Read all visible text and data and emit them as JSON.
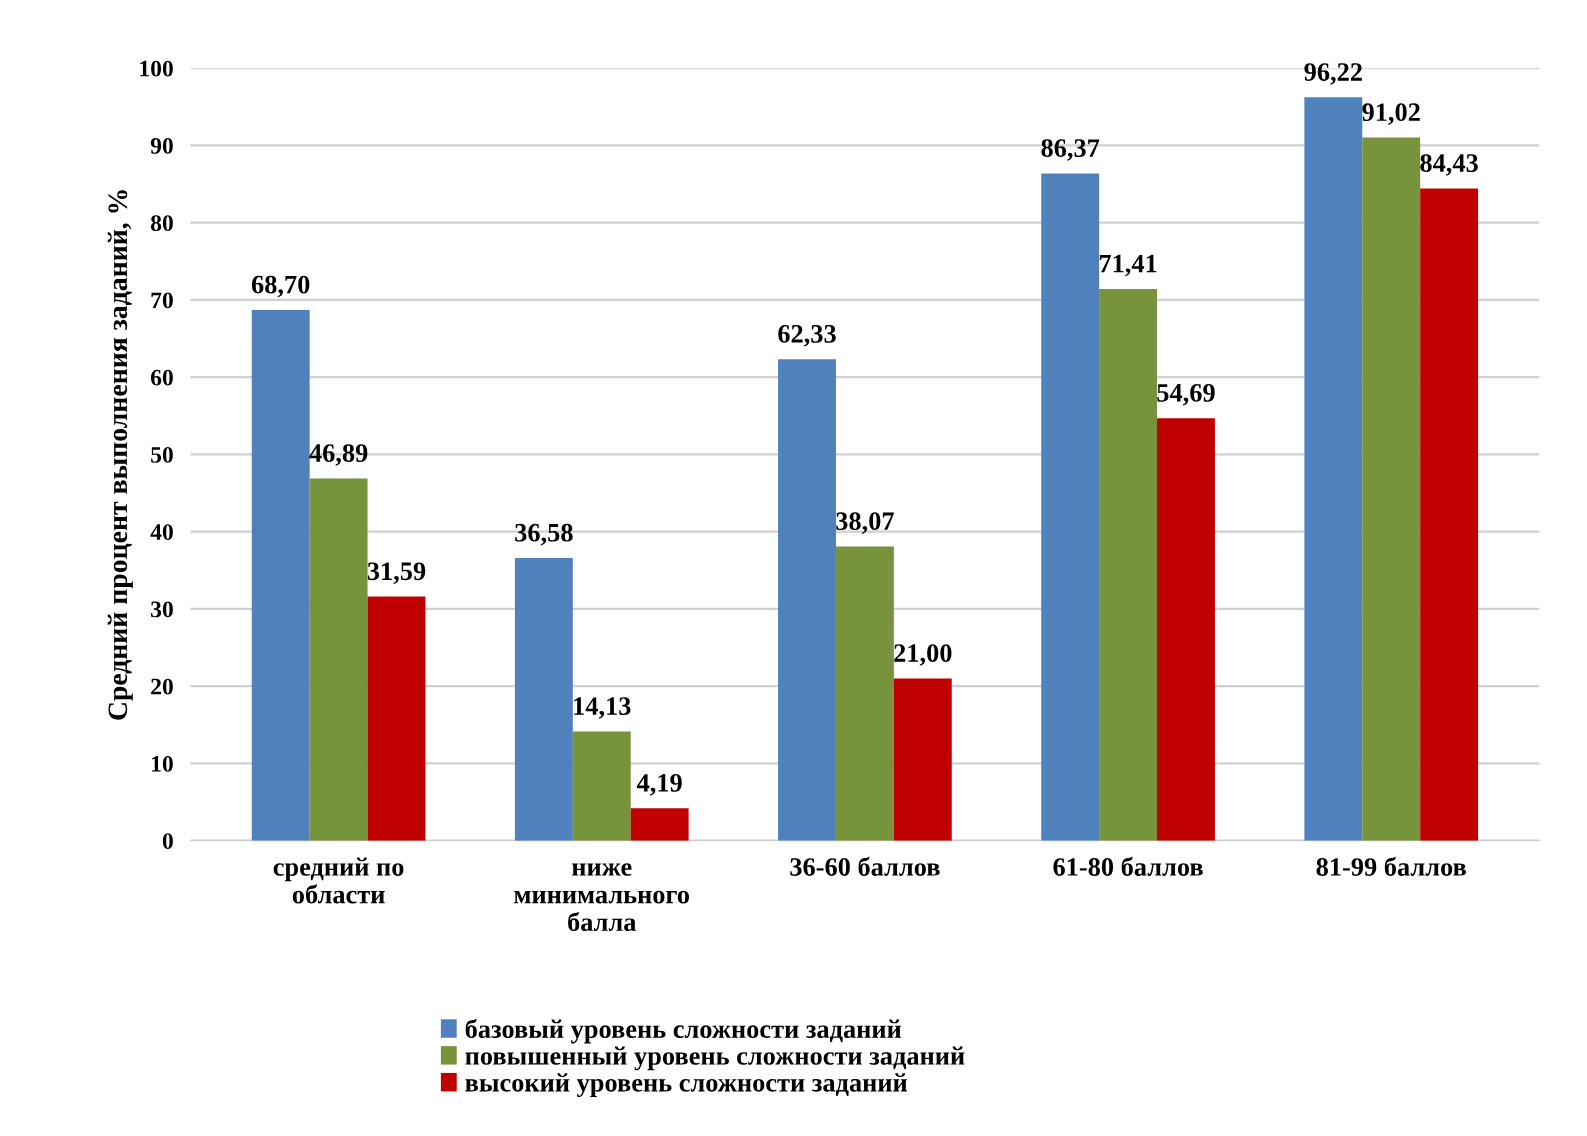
{
  "chart_data": {
    "type": "bar",
    "ylabel": "Средний процент выполнения заданий, %",
    "categories": [
      "средний по области",
      "ниже минимального балла",
      "36-60 баллов",
      "61-80 баллов",
      "81-99 баллов"
    ],
    "series": [
      {
        "name": "базовый уровень сложности заданий",
        "color": "#4f81bd",
        "values": [
          68.7,
          36.58,
          62.33,
          86.37,
          96.22
        ],
        "value_labels": [
          "68,70",
          "36,58",
          "62,33",
          "86,37",
          "96,22"
        ]
      },
      {
        "name": "повышенный уровень сложности заданий",
        "color": "#77933c",
        "values": [
          46.89,
          14.13,
          38.07,
          71.41,
          91.02
        ],
        "value_labels": [
          "46,89",
          "14,13",
          "38,07",
          "71,41",
          "91,02"
        ]
      },
      {
        "name": "высокий уровень сложности заданий",
        "color": "#c00000",
        "values": [
          31.59,
          4.19,
          21.0,
          54.69,
          84.43
        ],
        "value_labels": [
          "31,59",
          "4,19",
          "21,00",
          "54,69",
          "84,43"
        ]
      }
    ],
    "ylim": [
      0,
      100
    ],
    "yticks": [
      0,
      10,
      20,
      30,
      40,
      50,
      60,
      70,
      80,
      90,
      100
    ],
    "grid": "y",
    "legend": "bottom"
  }
}
